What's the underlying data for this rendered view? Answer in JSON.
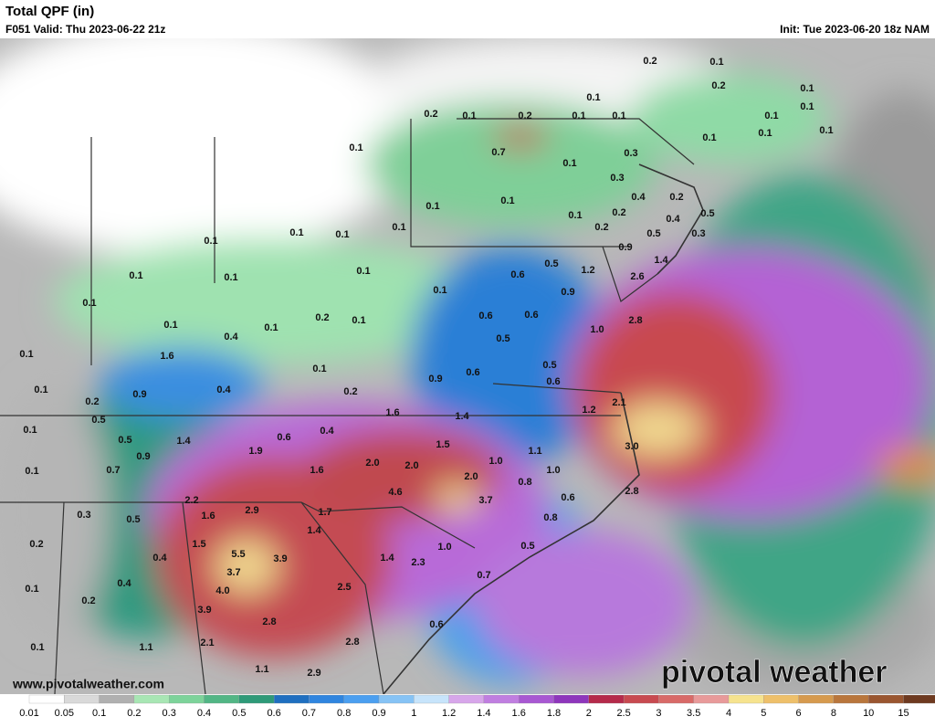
{
  "header": {
    "title": "Total QPF (in)",
    "valid": "F051 Valid: Thu 2023-06-22 21z",
    "init": "Init: Tue 2023-06-20 18z NAM"
  },
  "map": {
    "labels": [
      "0.2",
      "0.1",
      "0.2",
      "0.1",
      "0.1",
      "0.1",
      "0.2",
      "0.1",
      "0.2",
      "0.1",
      "0.1",
      "0.1",
      "0.1",
      "0.1",
      "0.1",
      "0.1",
      "0.7",
      "0.3",
      "0.1",
      "0.3",
      "0.4",
      "0.2",
      "0.1",
      "0.1",
      "0.1",
      "0.2",
      "0.4",
      "0.5",
      "0.1",
      "0.2",
      "0.5",
      "0.3",
      "0.1",
      "0.1",
      "0.1",
      "0.9",
      "1.4",
      "0.1",
      "0.1",
      "0.1",
      "0.6",
      "0.5",
      "1.2",
      "2.6",
      "0.1",
      "0.9",
      "0.1",
      "0.2",
      "0.1",
      "0.6",
      "0.6",
      "2.8",
      "0.1",
      "0.1",
      "1.0",
      "0.4",
      "0.5",
      "0.1",
      "1.6",
      "0.5",
      "0.1",
      "0.9",
      "0.6",
      "0.6",
      "0.1",
      "0.4",
      "0.2",
      "0.9",
      "2.1",
      "0.2",
      "1.6",
      "1.2",
      "1.4",
      "0.5",
      "0.1",
      "0.4",
      "0.6",
      "1.4",
      "0.5",
      "1.5",
      "1.1",
      "1.9",
      "3.0",
      "0.9",
      "1.0",
      "2.0",
      "2.0",
      "0.1",
      "0.7",
      "1.6",
      "1.0",
      "2.0",
      "0.8",
      "4.6",
      "2.8",
      "3.7",
      "2.2",
      "0.6",
      "2.9",
      "1.7",
      "0.3",
      "1.6",
      "0.5",
      "0.8",
      "1.4",
      "1.5",
      "0.2",
      "0.5",
      "1.0",
      "5.5",
      "3.9",
      "0.4",
      "1.4",
      "2.3",
      "3.7",
      "0.7",
      "0.4",
      "0.1",
      "2.5",
      "4.0",
      "0.2",
      "3.9",
      "2.8",
      "0.6",
      "2.1",
      "1.1",
      "0.1",
      "2.8",
      "1.1",
      "2.9"
    ]
  },
  "footer": {
    "site": "www.pivotalweather.com",
    "brand": "pivotal weather"
  },
  "legend": {
    "labels": [
      "0.01",
      "0.05",
      "0.1",
      "0.2",
      "0.3",
      "0.4",
      "0.5",
      "0.6",
      "0.7",
      "0.8",
      "0.9",
      "1",
      "1.2",
      "1.4",
      "1.6",
      "1.8",
      "2",
      "2.5",
      "3",
      "3.5",
      "4",
      "5",
      "6",
      "8",
      "10",
      "15"
    ],
    "colors": [
      "#ffffff",
      "#d9d9d9",
      "#b0b0b0",
      "#a8e6b4",
      "#7dd39a",
      "#52b685",
      "#2e9a78",
      "#1f6fc0",
      "#2f85df",
      "#4b9ff0",
      "#86c3f5",
      "#c7e4fb",
      "#d7a6ea",
      "#c07ee0",
      "#a858d2",
      "#8e36bc",
      "#b52a4a",
      "#c84a50",
      "#d86a68",
      "#e89a9a",
      "#f6e38e",
      "#eec06a",
      "#d69a4e",
      "#b9763c",
      "#9a5630",
      "#6e3a20"
    ]
  }
}
